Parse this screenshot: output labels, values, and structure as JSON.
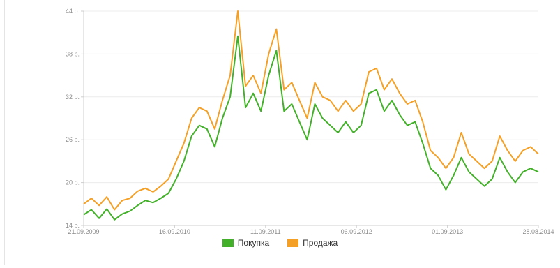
{
  "chart_data": {
    "type": "line",
    "title": "",
    "xlabel": "",
    "ylabel": "",
    "ylim": [
      14,
      44
    ],
    "yticks": [
      "14 р.",
      "20 р.",
      "26 р.",
      "32 р.",
      "38 р.",
      "44 р."
    ],
    "xticks": [
      "21.09.2009",
      "16.09.2010",
      "11.09.2011",
      "06.09.2012",
      "01.09.2013",
      "28.08.2014"
    ],
    "x": [
      "2009-09",
      "2009-10",
      "2009-11",
      "2009-12",
      "2010-01",
      "2010-02",
      "2010-03",
      "2010-04",
      "2010-05",
      "2010-06",
      "2010-07",
      "2010-08",
      "2010-09",
      "2010-10",
      "2010-11",
      "2010-12",
      "2011-01",
      "2011-02",
      "2011-03",
      "2011-04",
      "2011-05",
      "2011-06",
      "2011-07",
      "2011-08",
      "2011-09",
      "2011-10",
      "2011-11",
      "2011-12",
      "2012-01",
      "2012-02",
      "2012-03",
      "2012-04",
      "2012-05",
      "2012-06",
      "2012-07",
      "2012-08",
      "2012-09",
      "2012-10",
      "2012-11",
      "2012-12",
      "2013-01",
      "2013-02",
      "2013-03",
      "2013-04",
      "2013-05",
      "2013-06",
      "2013-07",
      "2013-08",
      "2013-09",
      "2013-10",
      "2013-11",
      "2013-12",
      "2014-01",
      "2014-02",
      "2014-03",
      "2014-04",
      "2014-05",
      "2014-06",
      "2014-07",
      "2014-08"
    ],
    "series": [
      {
        "name": "Покупка",
        "color": "#43b02a",
        "values": [
          15.5,
          16.2,
          15.0,
          16.3,
          14.8,
          15.6,
          16.0,
          16.8,
          17.5,
          17.2,
          17.8,
          18.5,
          20.5,
          23.0,
          26.5,
          28.0,
          27.5,
          25.0,
          29.0,
          32.0,
          40.5,
          30.5,
          32.5,
          30.0,
          35.0,
          38.5,
          30.0,
          31.0,
          28.5,
          26.0,
          31.0,
          29.0,
          28.0,
          27.0,
          28.5,
          27.0,
          28.0,
          32.5,
          33.0,
          30.0,
          31.5,
          29.5,
          28.0,
          28.5,
          25.5,
          22.0,
          21.0,
          19.0,
          21.0,
          23.5,
          21.5,
          20.5,
          19.5,
          20.5,
          23.5,
          21.5,
          20.0,
          21.5,
          22.0,
          21.5
        ]
      },
      {
        "name": "Продажа",
        "color": "#f4a026",
        "values": [
          17.0,
          17.8,
          16.8,
          18.0,
          16.2,
          17.5,
          17.8,
          18.8,
          19.2,
          18.7,
          19.5,
          20.5,
          23.0,
          25.5,
          29.0,
          30.5,
          30.0,
          27.5,
          31.5,
          35.0,
          44.0,
          33.5,
          35.0,
          32.5,
          38.0,
          41.5,
          33.0,
          34.0,
          31.5,
          29.0,
          34.0,
          32.0,
          31.5,
          30.0,
          31.5,
          30.0,
          31.0,
          35.5,
          36.0,
          33.0,
          34.5,
          32.5,
          31.0,
          31.5,
          28.5,
          24.5,
          23.5,
          22.0,
          23.5,
          27.0,
          24.0,
          23.0,
          22.0,
          23.0,
          26.5,
          24.5,
          23.0,
          24.5,
          25.0,
          24.0
        ]
      }
    ],
    "grid": true,
    "legend": "bottom-center"
  }
}
